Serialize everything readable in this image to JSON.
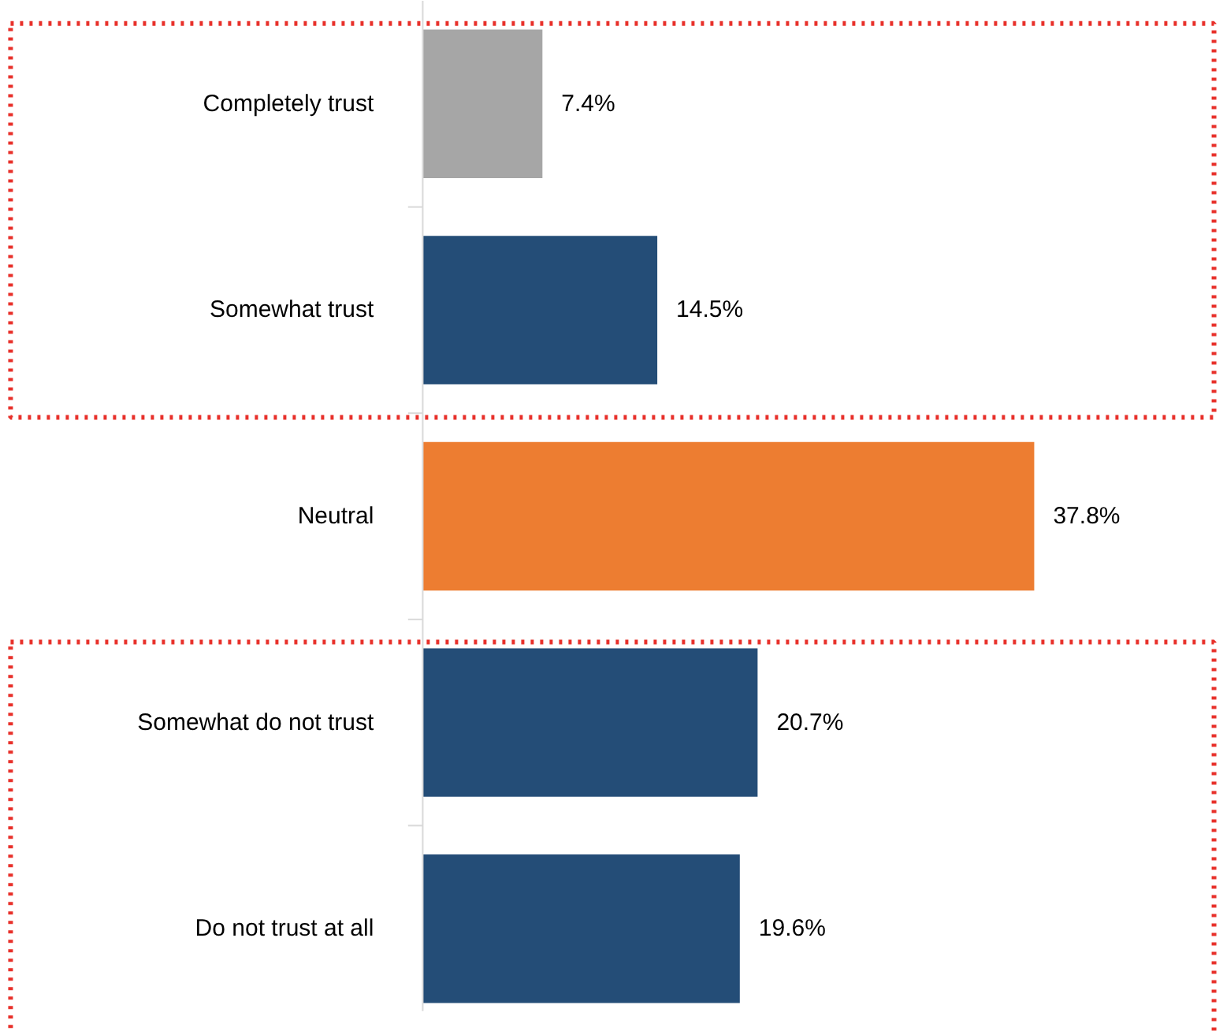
{
  "chart_data": {
    "type": "bar",
    "orientation": "horizontal",
    "categories": [
      "Completely trust",
      "Somewhat trust",
      "Neutral",
      "Somewhat do not trust",
      "Do not trust at all"
    ],
    "values": [
      7.4,
      14.5,
      37.8,
      20.7,
      19.6
    ],
    "colors": [
      "#a6a6a6",
      "#244d77",
      "#ed7d31",
      "#244d77",
      "#244d77"
    ],
    "value_labels": [
      "7.4%",
      "14.5%",
      "37.8%",
      "20.7%",
      "19.6%"
    ]
  }
}
